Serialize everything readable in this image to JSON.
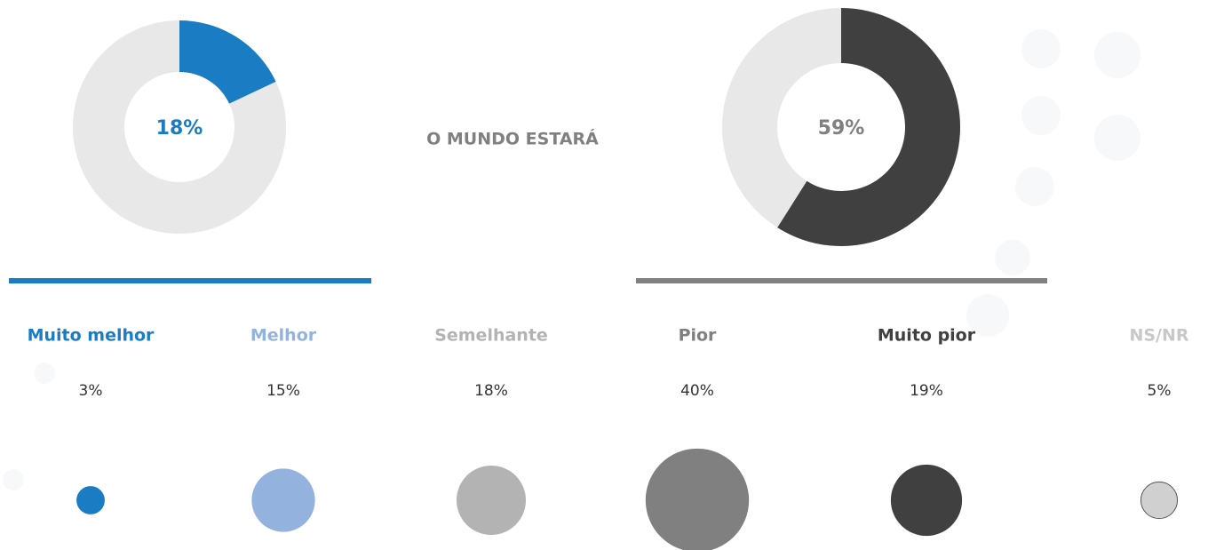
{
  "title": "O MUNDO ESTARÁ",
  "chart_data": [
    {
      "type": "donut",
      "values": [
        18
      ],
      "value_labels": [
        "18%"
      ],
      "color": "#1a7dc4",
      "track_color": "#e8e8e8",
      "label_color": "#1a7dc4",
      "underline_color": "#1a7dc4"
    },
    {
      "type": "donut",
      "values": [
        59
      ],
      "value_labels": [
        "59%"
      ],
      "color": "#404040",
      "track_color": "#e8e8e8",
      "label_color": "#808080",
      "underline_color": "#808080"
    },
    {
      "type": "bubble",
      "categories": [
        "Muito melhor",
        "Melhor",
        "Semelhante",
        "Pior",
        "Muito pior",
        "NS/NR"
      ],
      "values": [
        3,
        15,
        18,
        40,
        19,
        5
      ],
      "value_labels": [
        "3%",
        "15%",
        "18%",
        "40%",
        "19%",
        "5%"
      ],
      "colors": [
        "#1a7dc4",
        "#93b3de",
        "#b3b3b3",
        "#808080",
        "#404040",
        "#d0d0d0"
      ],
      "label_colors": [
        "#1a7dc4",
        "#93b3de",
        "#b3b3b3",
        "#808080",
        "#404040",
        "#c8c8c8"
      ]
    }
  ]
}
